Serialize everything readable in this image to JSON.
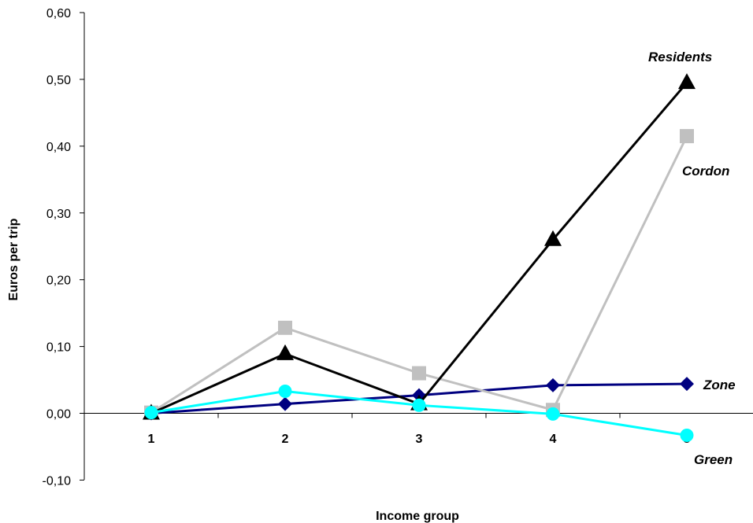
{
  "chart_data": {
    "type": "line",
    "xlabel": "Income group",
    "ylabel": "Euros per trip",
    "categories": [
      "1",
      "2",
      "3",
      "4",
      "5"
    ],
    "ylim": [
      -0.1,
      0.6
    ],
    "yticks": [
      "-0,10",
      "0,00",
      "0,10",
      "0,20",
      "0,30",
      "0,40",
      "0,50",
      "0,60"
    ],
    "legend": "inline labels at line ends",
    "grid": false,
    "series": [
      {
        "name": "Residents",
        "marker": "triangle",
        "color": "#000000",
        "values": [
          0.0,
          0.089,
          0.014,
          0.26,
          0.495
        ]
      },
      {
        "name": "Cordon",
        "marker": "square",
        "color": "#C0C0C0",
        "values": [
          0.001,
          0.128,
          0.06,
          0.005,
          0.415
        ]
      },
      {
        "name": "Zone",
        "marker": "diamond",
        "color": "#000080",
        "values": [
          0.0,
          0.014,
          0.027,
          0.042,
          0.044
        ]
      },
      {
        "name": "Green",
        "marker": "circle",
        "color": "#00FFFF",
        "values": [
          0.001,
          0.033,
          0.012,
          -0.001,
          -0.033
        ]
      }
    ]
  }
}
